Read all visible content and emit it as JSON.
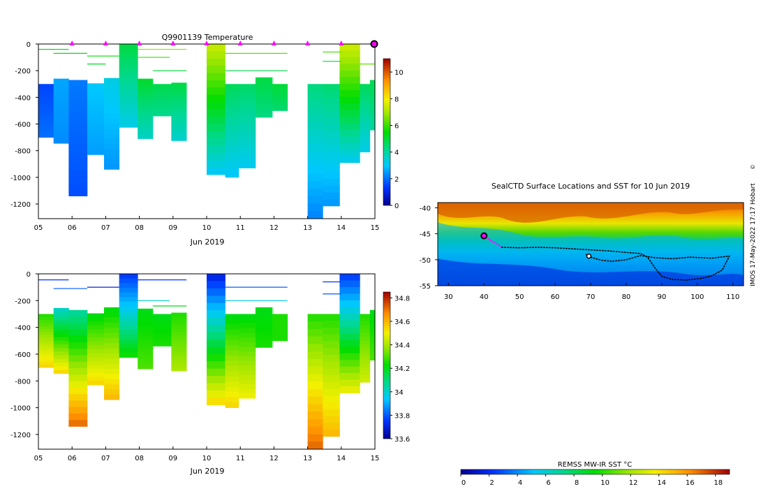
{
  "chart_data": [
    {
      "type": "heatmap",
      "id": "temperature",
      "title": "Q9901139  Temperature",
      "xlabel": "Jun 2019",
      "ylabel": "",
      "x_ticks": [
        "05",
        "06",
        "07",
        "08",
        "09",
        "10",
        "11",
        "12",
        "13",
        "14",
        "15"
      ],
      "y_ticks": [
        0,
        -200,
        -400,
        -600,
        -800,
        -1000,
        -1200
      ],
      "ylim": [
        -1310,
        0
      ],
      "xlim": [
        5,
        15
      ],
      "colorbar": {
        "min": 0,
        "max": 11,
        "ticks": [
          0,
          2,
          4,
          6,
          8,
          10
        ]
      },
      "surfacing_markers_day": [
        6,
        7,
        8,
        9,
        10,
        11,
        12,
        13,
        14
      ],
      "current_position_day": 15,
      "profiles": [
        {
          "x0": 5.0,
          "x1": 5.45,
          "top": -300,
          "bottom": -700,
          "surface": 1.5,
          "deep": 2.0
        },
        {
          "x0": 5.45,
          "x1": 5.9,
          "top": -260,
          "bottom": -745,
          "surface": 2.6,
          "deep": 2.3
        },
        {
          "x0": 5.9,
          "x1": 6.45,
          "top": -270,
          "bottom": -1140,
          "surface": 2.1,
          "deep": 1.6
        },
        {
          "x0": 6.45,
          "x1": 6.95,
          "top": -295,
          "bottom": -830,
          "surface": 3.0,
          "deep": 2.5
        },
        {
          "x0": 6.95,
          "x1": 7.4,
          "top": -255,
          "bottom": -940,
          "surface": 3.3,
          "deep": 2.4
        },
        {
          "x0": 7.4,
          "x1": 7.95,
          "top": 0,
          "bottom": -625,
          "surface": 4.9,
          "deep": 3.2
        },
        {
          "x0": 7.95,
          "x1": 8.4,
          "top": -260,
          "bottom": -710,
          "surface": 5.1,
          "deep": 3.6
        },
        {
          "x0": 8.4,
          "x1": 8.95,
          "top": -300,
          "bottom": -540,
          "surface": 4.8,
          "deep": 4.2
        },
        {
          "x0": 8.95,
          "x1": 9.4,
          "top": -290,
          "bottom": -725,
          "surface": 4.9,
          "deep": 3.5
        },
        {
          "x0": 10.0,
          "x1": 10.55,
          "top": 0,
          "bottom": -980,
          "surface": 7.4,
          "deep": 3.0
        },
        {
          "x0": 10.55,
          "x1": 10.95,
          "top": -300,
          "bottom": -1000,
          "surface": 4.7,
          "deep": 3.0
        },
        {
          "x0": 10.95,
          "x1": 11.45,
          "top": -300,
          "bottom": -930,
          "surface": 4.6,
          "deep": 3.1
        },
        {
          "x0": 11.45,
          "x1": 11.95,
          "top": -250,
          "bottom": -550,
          "surface": 4.9,
          "deep": 4.3
        },
        {
          "x0": 11.95,
          "x1": 12.4,
          "top": -300,
          "bottom": -500,
          "surface": 5.0,
          "deep": 4.5
        },
        {
          "x0": 13.0,
          "x1": 13.45,
          "top": -300,
          "bottom": -1310,
          "surface": 4.4,
          "deep": 2.2
        },
        {
          "x0": 13.45,
          "x1": 13.95,
          "top": -300,
          "bottom": -1215,
          "surface": 4.5,
          "deep": 2.4
        },
        {
          "x0": 13.95,
          "x1": 14.55,
          "top": 0,
          "bottom": -890,
          "surface": 7.5,
          "deep": 3.1
        },
        {
          "x0": 14.55,
          "x1": 14.85,
          "top": -300,
          "bottom": -810,
          "surface": 4.7,
          "deep": 3.2
        },
        {
          "x0": 14.85,
          "x1": 15.0,
          "top": -270,
          "bottom": -645,
          "surface": 4.8,
          "deep": 4.0
        }
      ],
      "near_surface_lines": [
        {
          "x0": 5.0,
          "x1": 5.9,
          "depth": -40,
          "value": 5.0
        },
        {
          "x0": 5.45,
          "x1": 6.45,
          "depth": -70,
          "value": 5.3
        },
        {
          "x0": 6.45,
          "x1": 7.4,
          "depth": -90,
          "value": 5.5
        },
        {
          "x0": 6.45,
          "x1": 7.0,
          "depth": -150,
          "value": 5.2
        },
        {
          "x0": 7.95,
          "x1": 9.4,
          "depth": -40,
          "value": 6.8
        },
        {
          "x0": 7.95,
          "x1": 8.9,
          "depth": -100,
          "value": 6.0
        },
        {
          "x0": 8.4,
          "x1": 9.4,
          "depth": -200,
          "value": 5.0
        },
        {
          "x0": 10.55,
          "x1": 12.4,
          "depth": -70,
          "value": 6.2
        },
        {
          "x0": 10.55,
          "x1": 12.4,
          "depth": -200,
          "value": 4.8
        },
        {
          "x0": 13.45,
          "x1": 14.0,
          "depth": -60,
          "value": 6.0
        },
        {
          "x0": 13.45,
          "x1": 14.0,
          "depth": -130,
          "value": 5.0
        },
        {
          "x0": 14.55,
          "x1": 15.0,
          "depth": -150,
          "value": 6.3
        }
      ]
    },
    {
      "type": "heatmap",
      "id": "salinity",
      "title": "",
      "xlabel": "Jun 2019",
      "ylabel": "",
      "x_ticks": [
        "05",
        "06",
        "07",
        "08",
        "09",
        "10",
        "11",
        "12",
        "13",
        "14",
        "15"
      ],
      "y_ticks": [
        0,
        -200,
        -400,
        -600,
        -800,
        -1000,
        -1200
      ],
      "ylim": [
        -1310,
        0
      ],
      "xlim": [
        5,
        15
      ],
      "colorbar": {
        "min": 33.6,
        "max": 34.85,
        "ticks": [
          33.6,
          33.8,
          34,
          34.2,
          34.4,
          34.6,
          34.8
        ]
      },
      "profiles": [
        {
          "x0": 5.0,
          "x1": 5.45,
          "top": -300,
          "bottom": -700,
          "surface": 34.25,
          "deep": 34.55
        },
        {
          "x0": 5.45,
          "x1": 5.9,
          "top": -255,
          "bottom": -745,
          "surface": 34.0,
          "deep": 34.55
        },
        {
          "x0": 5.9,
          "x1": 6.45,
          "top": -270,
          "bottom": -1140,
          "surface": 34.05,
          "deep": 34.72
        },
        {
          "x0": 6.45,
          "x1": 6.95,
          "top": -295,
          "bottom": -830,
          "surface": 34.2,
          "deep": 34.55
        },
        {
          "x0": 6.95,
          "x1": 7.4,
          "top": -250,
          "bottom": -940,
          "surface": 34.2,
          "deep": 34.6
        },
        {
          "x0": 7.4,
          "x1": 7.95,
          "top": 0,
          "bottom": -625,
          "surface": 33.75,
          "deep": 34.25
        },
        {
          "x0": 7.95,
          "x1": 8.4,
          "top": -260,
          "bottom": -710,
          "surface": 34.2,
          "deep": 34.3
        },
        {
          "x0": 8.4,
          "x1": 8.95,
          "top": -300,
          "bottom": -540,
          "surface": 34.2,
          "deep": 34.25
        },
        {
          "x0": 8.95,
          "x1": 9.4,
          "top": -290,
          "bottom": -725,
          "surface": 34.25,
          "deep": 34.4
        },
        {
          "x0": 10.0,
          "x1": 10.55,
          "top": 0,
          "bottom": -980,
          "surface": 33.7,
          "deep": 34.55
        },
        {
          "x0": 10.55,
          "x1": 10.95,
          "top": -300,
          "bottom": -1000,
          "surface": 34.2,
          "deep": 34.55
        },
        {
          "x0": 10.95,
          "x1": 11.45,
          "top": -300,
          "bottom": -930,
          "surface": 34.2,
          "deep": 34.5
        },
        {
          "x0": 11.45,
          "x1": 11.95,
          "top": -250,
          "bottom": -550,
          "surface": 34.2,
          "deep": 34.25
        },
        {
          "x0": 11.95,
          "x1": 12.4,
          "top": -300,
          "bottom": -500,
          "surface": 34.25,
          "deep": 34.25
        },
        {
          "x0": 13.0,
          "x1": 13.45,
          "top": -300,
          "bottom": -1310,
          "surface": 34.25,
          "deep": 34.72
        },
        {
          "x0": 13.45,
          "x1": 13.95,
          "top": -300,
          "bottom": -1215,
          "surface": 34.25,
          "deep": 34.6
        },
        {
          "x0": 13.95,
          "x1": 14.55,
          "top": 0,
          "bottom": -890,
          "surface": 33.75,
          "deep": 34.5
        },
        {
          "x0": 14.55,
          "x1": 14.85,
          "top": -300,
          "bottom": -810,
          "surface": 34.25,
          "deep": 34.45
        },
        {
          "x0": 14.85,
          "x1": 15.0,
          "top": -270,
          "bottom": -645,
          "surface": 34.2,
          "deep": 34.3
        }
      ],
      "near_surface_lines": [
        {
          "x0": 5.0,
          "x1": 5.9,
          "depth": -45,
          "value": 33.75
        },
        {
          "x0": 5.45,
          "x1": 6.45,
          "depth": -110,
          "value": 33.8
        },
        {
          "x0": 6.45,
          "x1": 7.4,
          "depth": -100,
          "value": 33.7
        },
        {
          "x0": 7.95,
          "x1": 9.4,
          "depth": -45,
          "value": 33.75
        },
        {
          "x0": 7.95,
          "x1": 8.9,
          "depth": -200,
          "value": 34.0
        },
        {
          "x0": 8.4,
          "x1": 9.4,
          "depth": -240,
          "value": 34.2
        },
        {
          "x0": 10.55,
          "x1": 12.4,
          "depth": -100,
          "value": 33.8
        },
        {
          "x0": 10.55,
          "x1": 12.4,
          "depth": -200,
          "value": 33.95
        },
        {
          "x0": 13.45,
          "x1": 14.0,
          "depth": -60,
          "value": 33.75
        },
        {
          "x0": 13.45,
          "x1": 14.0,
          "depth": -150,
          "value": 33.8
        }
      ]
    },
    {
      "type": "heatmap",
      "id": "map",
      "title": "SealCTD Surface Locations and SST for 10 Jun 2019",
      "xlabel": "",
      "ylabel": "",
      "x_ticks": [
        30,
        40,
        50,
        60,
        70,
        80,
        90,
        100,
        110
      ],
      "y_ticks": [
        -40,
        -45,
        -50,
        -55
      ],
      "xlim": [
        27,
        113
      ],
      "ylim": [
        -55,
        -39
      ],
      "colorbar": {
        "label": "REMSS MW-IR SST °C",
        "min": 0,
        "max": 19,
        "ticks": [
          0,
          2,
          4,
          6,
          8,
          10,
          12,
          14,
          16,
          18
        ]
      },
      "track_recent": [
        [
          40,
          -45.4
        ],
        [
          41.5,
          -46.1
        ],
        [
          42.6,
          -46.6
        ],
        [
          43.8,
          -47.0
        ],
        [
          45,
          -47.6
        ]
      ],
      "track": [
        [
          45,
          -47.6
        ],
        [
          50,
          -47.7
        ],
        [
          55,
          -47.6
        ],
        [
          60,
          -47.7
        ],
        [
          65,
          -47.9
        ],
        [
          70,
          -48.1
        ],
        [
          75,
          -48.3
        ],
        [
          80,
          -48.6
        ],
        [
          84,
          -48.8
        ],
        [
          86,
          -49.5
        ],
        [
          88,
          -51.5
        ],
        [
          90,
          -53.2
        ],
        [
          93,
          -53.8
        ],
        [
          97,
          -53.9
        ],
        [
          101,
          -53.6
        ],
        [
          104,
          -53.1
        ],
        [
          107,
          -52.0
        ],
        [
          109,
          -49.3
        ],
        [
          104,
          -49.7
        ],
        [
          98,
          -49.5
        ],
        [
          93,
          -49.8
        ],
        [
          88,
          -49.6
        ],
        [
          84,
          -49.2
        ],
        [
          80,
          -50.0
        ],
        [
          76,
          -50.3
        ],
        [
          73,
          -50.1
        ],
        [
          70,
          -49.5
        ],
        [
          68.5,
          -48.9
        ]
      ],
      "start_position": [
        40,
        -45.4
      ],
      "current_position": [
        69.5,
        -49.3
      ],
      "credit": "IMOS 17-May-2022 17:17 Hobart"
    }
  ]
}
